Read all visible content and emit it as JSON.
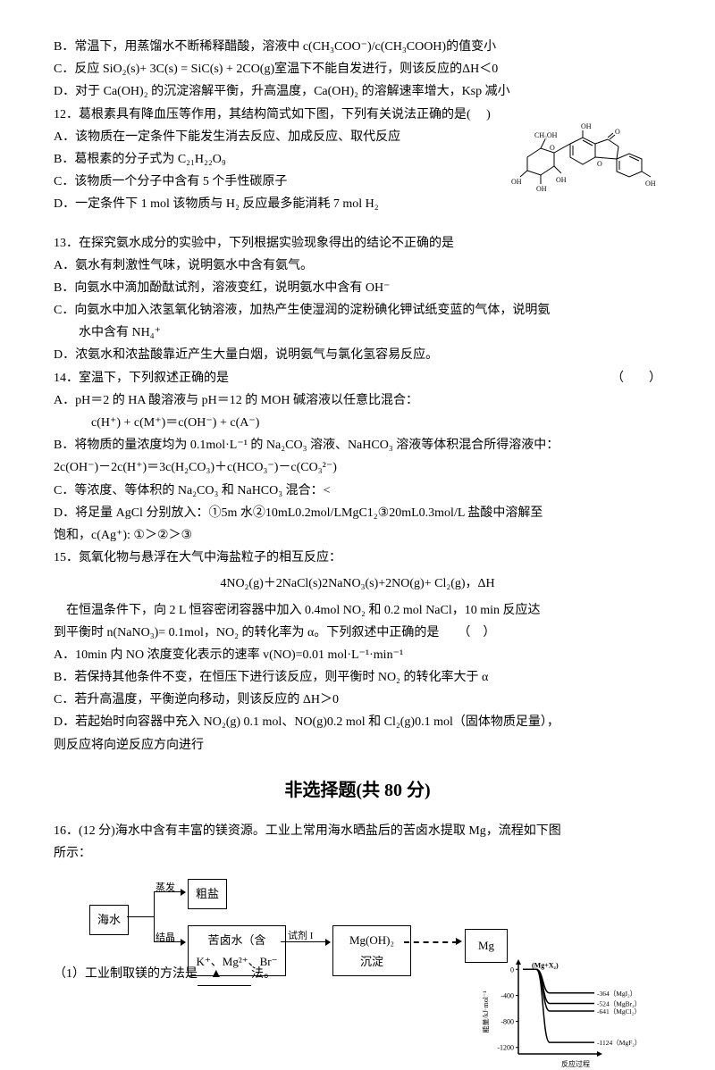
{
  "q11": {
    "B": "B．常温下，用蒸馏水不断稀释醋酸，溶液中 c(CH₃COO⁻)/c(CH₃COOH)的值变小",
    "C": "C．反应 SiO₂(s)+ 3C(s) = SiC(s) + 2CO(g)室温下不能自发进行，则该反应的ΔH＜0",
    "D": "D．对于 Ca(OH)₂ 的沉淀溶解平衡，升高温度，Ca(OH)₂ 的溶解速率增大，Ksp 减小"
  },
  "q12": {
    "stem": "12．葛根素具有降血压等作用，其结构简式如下图，下列有关说法正确的是(    　)",
    "A": "A．该物质在一定条件下能发生消去反应、加成反应、取代反应",
    "B": "B．葛根素的分子式为 C₂₁H₂₂O₉",
    "C": "C．该物质一个分子中含有 5 个手性碳原子",
    "D": "D．一定条件下 1 mol  该物质与 H₂ 反应最多能消耗 7 mol H₂"
  },
  "q13": {
    "stem": "13．在探究氨水成分的实验中，下列根据实验现象得出的结论不正确的是",
    "A": "A．氨水有刺激性气味，说明氨水中含有氨气。",
    "B": "B．向氨水中滴加酚酞试剂，溶液变红，说明氨水中含有 OH⁻",
    "C": "C．向氨水中加入浓氢氧化钠溶液，加热产生使湿润的淀粉碘化钾试纸变蓝的气体，说明氨",
    "C2": "水中含有 NH₄⁺",
    "D": "D．浓氨水和浓盐酸靠近产生大量白烟，说明氨气与氯化氢容易反应。"
  },
  "q14": {
    "stem": "14．室温下，下列叙述正确的是",
    "paren": "（　　）",
    "A": "A．pH＝2 的 HA 酸溶液与 pH＝12 的 MOH 碱溶液以任意比混合：",
    "A2": "c(H⁺) + c(M⁺)＝c(OH⁻) + c(A⁻)",
    "B": "B．将物质的量浓度均为 0.1mol·L⁻¹ 的 Na₂CO₃ 溶液、NaHCO₃ 溶液等体积混合所得溶液中：",
    "B2": "2c(OH⁻)－2c(H⁺)＝3c(H₂CO₃)＋c(HCO₃⁻)－c(CO₃²⁻)",
    "C": "C．等浓度、等体积的 Na₂CO₃ 和 NaHCO₃ 混合：<",
    "D": "D．将足量 AgCl 分别放入：①5m 水②10mL0.2mol/LMgC1₂③20mL0.3mol/L 盐酸中溶解至",
    "D2": "饱和，c(Ag⁺): ①＞②＞③"
  },
  "q15": {
    "stem": "15．氮氧化物与悬浮在大气中海盐粒子的相互反应：",
    "eq": "4NO₂(g)＋2NaCl(s)2NaNO₃(s)+2NO(g)+ Cl₂(g)，ΔH",
    "p1": "在恒温条件下，向 2 L 恒容密闭容器中加入 0.4mol NO₂ 和 0.2 mol NaCl，10 min 反应达",
    "p2": "到平衡时 n(NaNO₃)= 0.1mol，NO₂ 的转化率为 α。下列叙述中正确的是　　（　）",
    "A": "A．10min 内 NO 浓度变化表示的速率 v(NO)=0.01 mol·L⁻¹·min⁻¹",
    "B": "B．若保持其他条件不变，在恒压下进行该反应，则平衡时 NO₂ 的转化率大于 α",
    "C": "C．若升高温度，平衡逆向移动，则该反应的 ΔH＞0",
    "D": "D．若起始时向容器中充入 NO₂(g) 0.1 mol、NO(g)0.2 mol 和 Cl₂(g)0.1 mol（固体物质足量），",
    "D2": "则反应将向逆反应方向进行"
  },
  "section2": "非选择题(共 80 分)",
  "q16": {
    "stem": "16．(12 分)海水中含有丰富的镁资源。工业上常用海水晒盐后的苦卤水提取 Mg，流程如下图",
    "stem2": "所示：",
    "flow": {
      "seawater": "海水",
      "evap": "蒸发",
      "cryst": "结晶",
      "crude": "粗盐",
      "brine1": "苦卤水（含",
      "brine2": "K⁺、Mg²⁺、Br⁻",
      "reagent": "试剂 I",
      "precip1": "Mg(OH)₂",
      "precip2": "沉淀",
      "mg": "Mg"
    },
    "sub1": "（1）工业制取镁的方法是",
    "sub1b": "法。",
    "blank": "▲",
    "graph": {
      "ylabel": "能量/kJ·mol⁻¹",
      "xlabel": "反应过程",
      "top": "(Mg+X₂)",
      "yticks": [
        "0",
        "-400",
        "-800",
        "-1200"
      ],
      "lines": [
        {
          "label": "-364（MgI₂）",
          "y": -364,
          "color": "#000"
        },
        {
          "label": "-524（MgBr₂）",
          "y": -524,
          "color": "#000"
        },
        {
          "label": "-641（MgCl₂）",
          "y": -641,
          "color": "#000"
        },
        {
          "label": "-1124（MgF₂）",
          "y": -1124,
          "color": "#000"
        }
      ],
      "ylim": [
        -1300,
        100
      ],
      "bg": "#ffffff",
      "axis_color": "#000000"
    }
  }
}
